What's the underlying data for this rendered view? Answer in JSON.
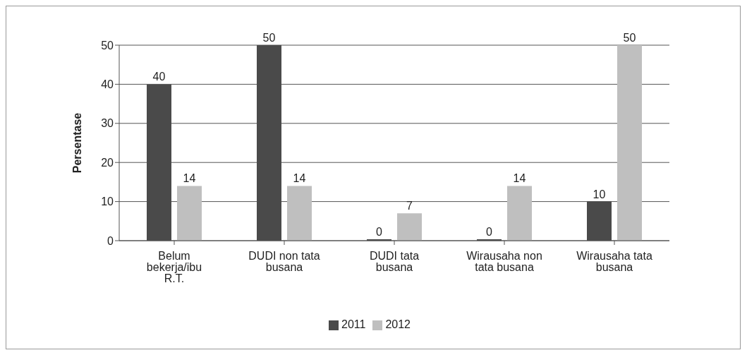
{
  "chart_data": {
    "type": "bar",
    "categories": [
      "Belum bekerja/ibu R.T.",
      "DUDI non tata busana",
      "DUDI tata busana",
      "Wirausaha non tata busana",
      "Wirausaha tata busana"
    ],
    "series": [
      {
        "name": "2011",
        "color": "#4a4a4a",
        "values": [
          40,
          50,
          0,
          0,
          10
        ]
      },
      {
        "name": "2012",
        "color": "#bfbfbf",
        "values": [
          14,
          14,
          7,
          14,
          50
        ]
      }
    ],
    "ylabel": "Persentase",
    "ylim": [
      0,
      50
    ],
    "yticks": [
      0,
      10,
      20,
      30,
      40,
      50
    ],
    "grid": "y",
    "legend": "bottom",
    "data_labels": true
  }
}
